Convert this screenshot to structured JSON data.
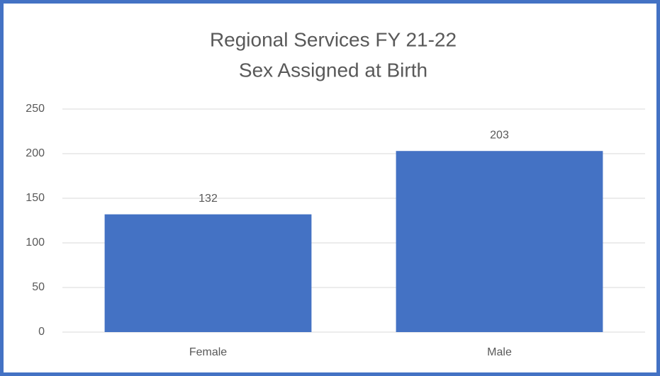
{
  "chart_data": {
    "type": "bar",
    "title": "Regional Services FY 21-22",
    "subtitle": "Sex Assigned at Birth",
    "categories": [
      "Female",
      "Male"
    ],
    "values": [
      132,
      203
    ],
    "color": "#4472c4",
    "ylim": [
      0,
      250
    ],
    "yticks": [
      0,
      50,
      100,
      150,
      200,
      250
    ],
    "grid": true
  }
}
